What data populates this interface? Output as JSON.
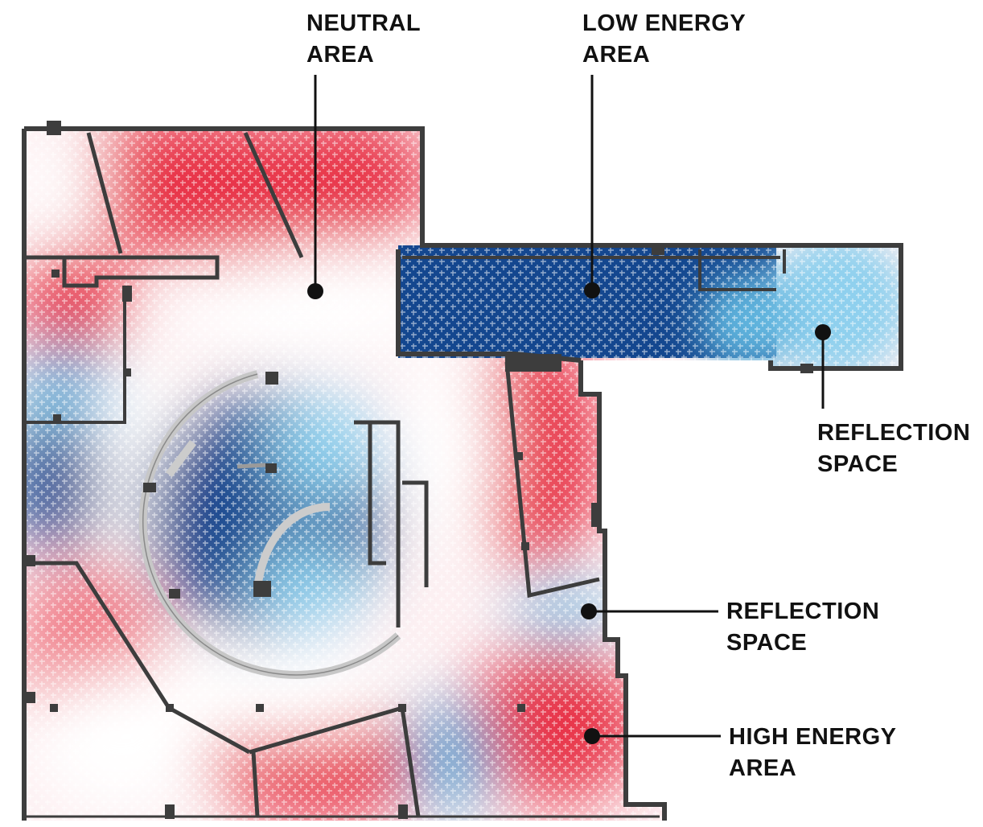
{
  "palette": {
    "high_energy": "#e8344a",
    "neutral": "#ffffff",
    "low_energy": "#14478f",
    "reflection": "#8fd0ee",
    "wall": "#3d3d3d",
    "label_text": "#111111"
  },
  "annotations": [
    {
      "id": "neutral-area",
      "line1": "NEUTRAL",
      "line2": "AREA"
    },
    {
      "id": "low-energy-area",
      "line1": "LOW ENERGY",
      "line2": "AREA"
    },
    {
      "id": "reflection-space-1",
      "line1": "REFLECTION",
      "line2": "SPACE"
    },
    {
      "id": "reflection-space-2",
      "line1": "REFLECTION",
      "line2": "SPACE"
    },
    {
      "id": "high-energy-area",
      "line1": "HIGH ENERGY",
      "line2": "AREA"
    }
  ]
}
